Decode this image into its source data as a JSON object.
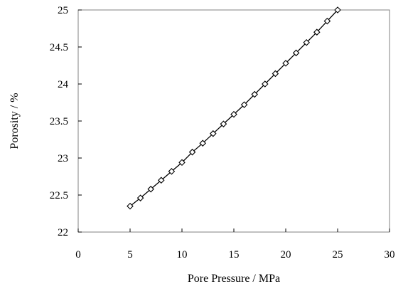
{
  "chart_data": {
    "type": "line",
    "title": "",
    "xlabel": "Pore Pressure / MPa",
    "ylabel": "Porosity / %",
    "xlim": [
      0,
      30
    ],
    "ylim": [
      22,
      25
    ],
    "x_ticks": [
      0,
      5,
      10,
      15,
      20,
      25,
      30
    ],
    "y_ticks": [
      22,
      22.5,
      23,
      23.5,
      24,
      24.5,
      25
    ],
    "x_tick_labels": [
      "0",
      "5",
      "10",
      "15",
      "20",
      "25",
      "30"
    ],
    "y_tick_labels": [
      "22",
      "22.5",
      "23",
      "23.5",
      "24",
      "24.5",
      "25"
    ],
    "grid": false,
    "legend": "none",
    "marker": "diamond-open",
    "line_color": "#000000",
    "series": [
      {
        "x": [
          5,
          6,
          7,
          8,
          9,
          10,
          11,
          12,
          13,
          14,
          15,
          16,
          17,
          18,
          19,
          20,
          21,
          22,
          23,
          24,
          25
        ],
        "y": [
          22.35,
          22.46,
          22.58,
          22.7,
          22.82,
          22.94,
          23.08,
          23.2,
          23.33,
          23.46,
          23.59,
          23.72,
          23.86,
          24.0,
          24.14,
          24.28,
          24.42,
          24.56,
          24.7,
          24.85,
          25.0
        ]
      }
    ]
  }
}
